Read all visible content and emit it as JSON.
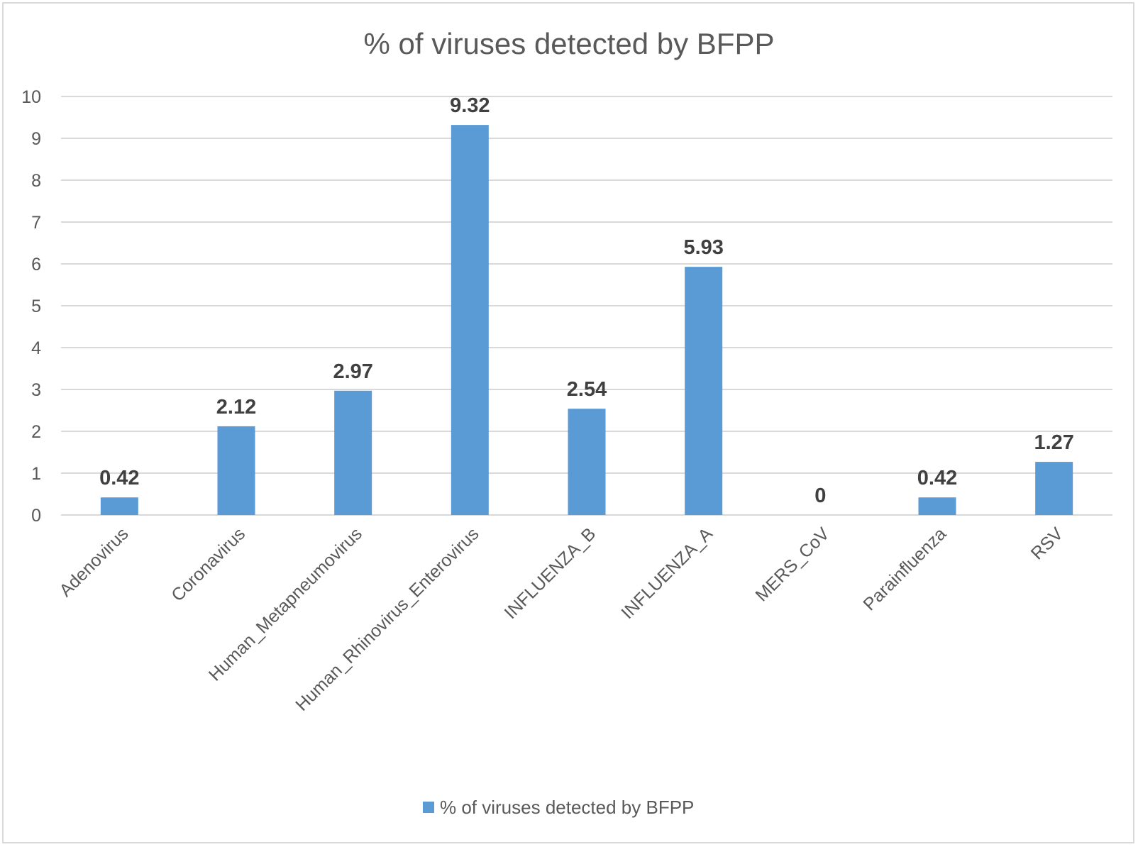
{
  "chart_data": {
    "type": "bar",
    "title": "% of viruses detected by BFPP",
    "xlabel": "",
    "ylabel": "",
    "ylim": [
      0,
      10
    ],
    "yticks": [
      "0",
      "1",
      "2",
      "3",
      "4",
      "5",
      "6",
      "7",
      "8",
      "9",
      "10"
    ],
    "grid": true,
    "legend_position": "bottom",
    "categories": [
      "Adenovirus",
      "Coronavirus",
      "Human_Metapneumovirus",
      "Human_Rhinovirus_Enterovirus",
      "INFLUENZA_B",
      "INFLUENZA_A",
      "MERS_CoV",
      "Parainfluenza",
      "RSV"
    ],
    "series": [
      {
        "name": "% of viruses detected by BFPP",
        "color": "#5b9bd5",
        "values": [
          0.42,
          2.12,
          2.97,
          9.32,
          2.54,
          5.93,
          0,
          0.42,
          1.27
        ],
        "labels": [
          "0.42",
          "2.12",
          "2.97",
          "9.32",
          "2.54",
          "5.93",
          "0",
          "0.42",
          "1.27"
        ]
      }
    ],
    "colors": {
      "bar": "#5b9bd5",
      "grid": "#d9d9d9",
      "text": "#595959",
      "data_label": "#404040"
    }
  }
}
